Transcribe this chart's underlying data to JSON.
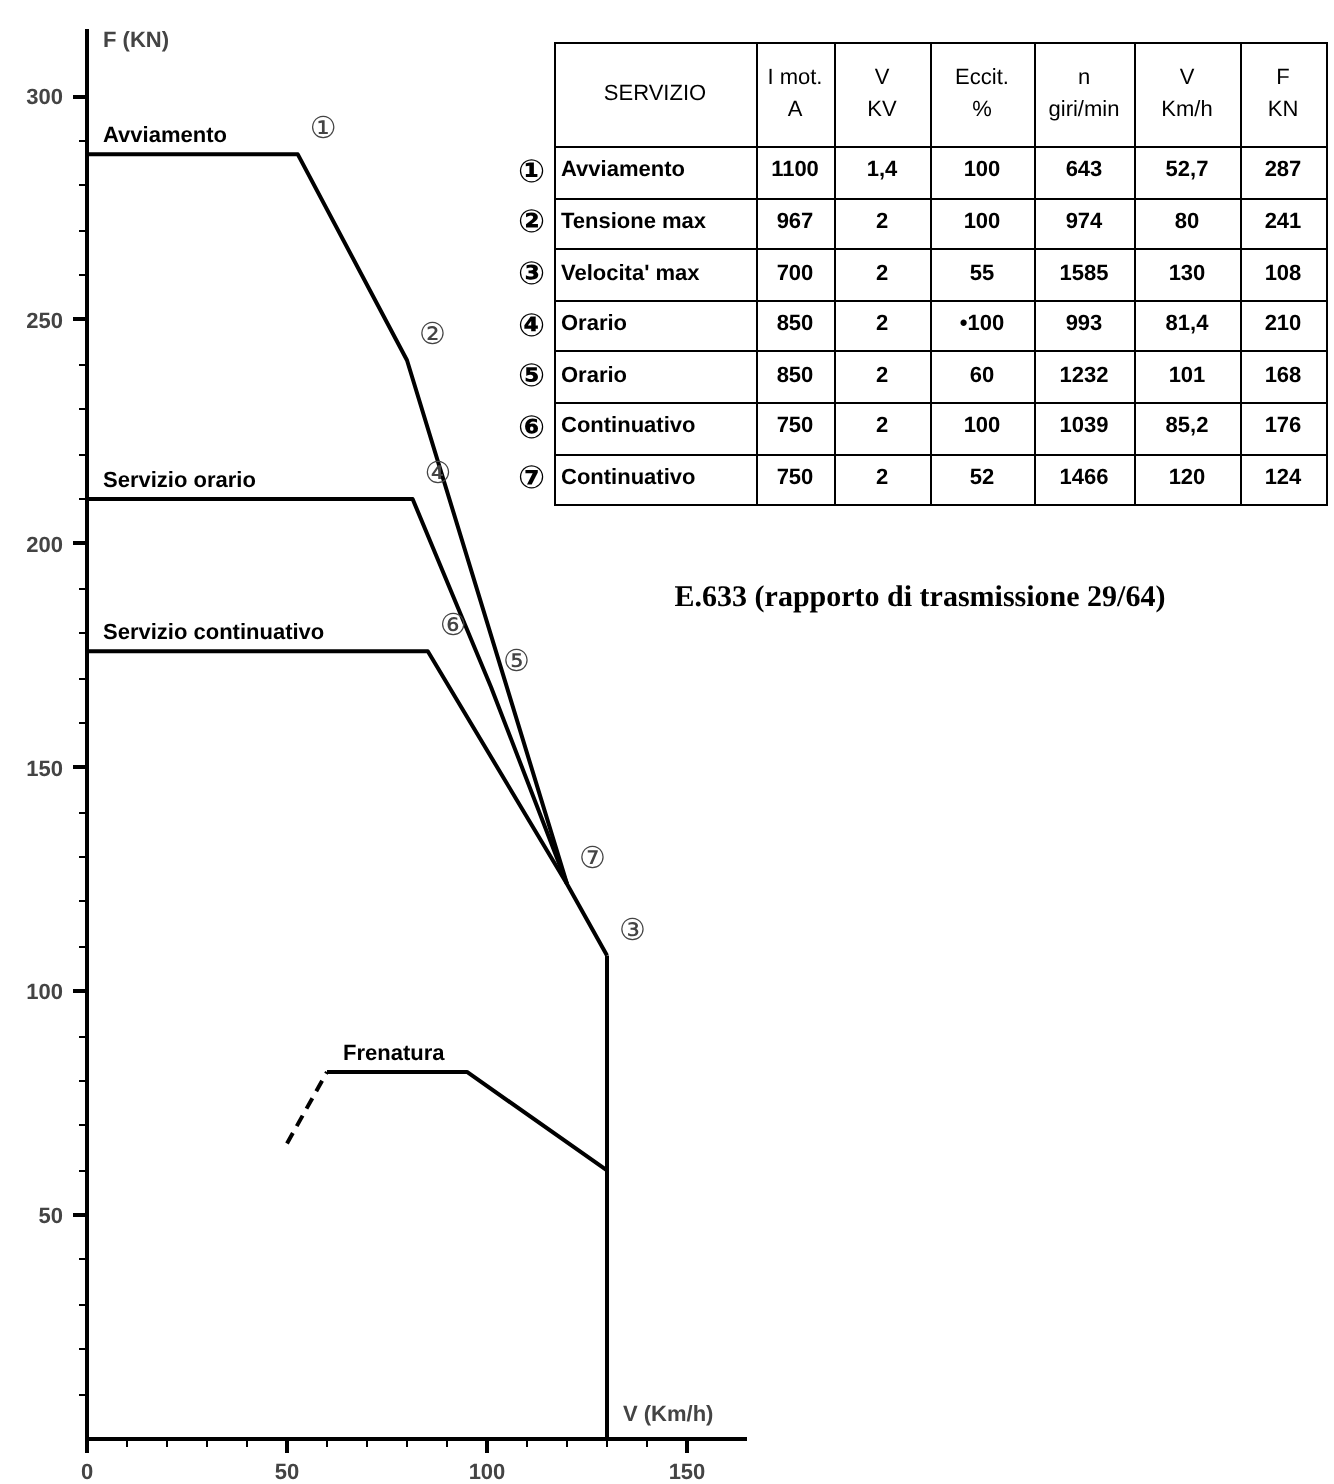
{
  "chart_data": [
    {
      "type": "line",
      "xlabel": "V (Km/h)",
      "ylabel": "F (KN)",
      "xlim": [
        0,
        165
      ],
      "ylim": [
        0,
        315
      ],
      "xticks": [
        0,
        {
          "value": 10,
          "label": null
        },
        {
          "value": 20,
          "label": null
        },
        {
          "value": 30,
          "label": null
        },
        {
          "value": 40,
          "label": null
        },
        50,
        {
          "value": 60,
          "label": null
        },
        {
          "value": 70,
          "label": null
        },
        {
          "value": 80,
          "label": null
        },
        {
          "value": 90,
          "label": null
        },
        100,
        {
          "value": 110,
          "label": null
        },
        {
          "value": 120,
          "label": null
        },
        {
          "value": 130,
          "label": null
        },
        {
          "value": 140,
          "label": null
        },
        150
      ],
      "yticks": [
        {
          "value": 10,
          "label": null
        },
        {
          "value": 20,
          "label": null
        },
        {
          "value": 30,
          "label": null
        },
        {
          "value": 40,
          "label": null
        },
        50,
        {
          "value": 60,
          "label": null
        },
        {
          "value": 70,
          "label": null
        },
        {
          "value": 80,
          "label": null
        },
        {
          "value": 90,
          "label": null
        },
        100,
        {
          "value": 110,
          "label": null
        },
        {
          "value": 120,
          "label": null
        },
        {
          "value": 130,
          "label": null
        },
        {
          "value": 140,
          "label": null
        },
        150,
        {
          "value": 160,
          "label": null
        },
        {
          "value": 170,
          "label": null
        },
        {
          "value": 180,
          "label": null
        },
        {
          "value": 190,
          "label": null
        },
        200,
        {
          "value": 210,
          "label": null
        },
        {
          "value": 220,
          "label": null
        },
        {
          "value": 230,
          "label": null
        },
        {
          "value": 240,
          "label": null
        },
        250,
        {
          "value": 260,
          "label": null
        },
        {
          "value": 270,
          "label": null
        },
        {
          "value": 280,
          "label": null
        },
        {
          "value": 290,
          "label": null
        },
        300
      ],
      "grid": false,
      "marker": "none",
      "series": [
        {
          "name": "Avviamento",
          "color": "#000000",
          "x": [
            0,
            52.7,
            80,
            120,
            130
          ],
          "values": [
            287,
            287,
            241,
            124,
            108
          ]
        },
        {
          "name": "Servizio orario",
          "color": "#000000",
          "x": [
            0,
            81.4,
            101,
            120
          ],
          "values": [
            210,
            210,
            168,
            124
          ]
        },
        {
          "name": "Servizio continuativo",
          "color": "#000000",
          "x": [
            0,
            85.2,
            120
          ],
          "values": [
            176,
            176,
            124
          ]
        },
        {
          "color": "#000000",
          "x": [
            130,
            130
          ],
          "values": [
            108,
            0
          ]
        },
        {
          "name": "Frenatura",
          "color": "#000000",
          "x": [
            60,
            95,
            130
          ],
          "values": [
            82,
            82,
            60
          ]
        },
        {
          "color": "#000000",
          "x": [
            50,
            60
          ],
          "values": [
            66,
            82
          ],
          "line_style": "dashed"
        }
      ],
      "annotations": [
        {
          "text": "①",
          "x": 52.7,
          "y": 287
        },
        {
          "text": "②",
          "x": 80,
          "y": 241
        },
        {
          "text": "③",
          "x": 130,
          "y": 108
        },
        {
          "text": "④",
          "x": 81.4,
          "y": 210
        },
        {
          "text": "⑤",
          "x": 101,
          "y": 168
        },
        {
          "text": "⑥",
          "x": 85.2,
          "y": 176
        },
        {
          "text": "⑦",
          "x": 120,
          "y": 124
        }
      ]
    },
    {
      "type": "other",
      "categories": [
        "SERVIZIO",
        "I mot.\nA",
        "V\nKV",
        "Eccit.\n%",
        "n\ngiri/min",
        "V\nKm/h",
        "F\nKN"
      ],
      "y_categories": [
        "①",
        "②",
        "③",
        "④",
        "⑤",
        "⑥",
        "⑦"
      ],
      "cell_labels": [
        [
          "Avviamento",
          "1100",
          "1,4",
          "100",
          "643",
          "52,7",
          "287"
        ],
        [
          "Tensione max",
          "967",
          "2",
          "100",
          "974",
          "80",
          "241"
        ],
        [
          "Velocita' max",
          "700",
          "2",
          "55",
          "1585",
          "130",
          "108"
        ],
        [
          "Orario",
          "850",
          "2",
          "•100",
          "993",
          "81,4",
          "210"
        ],
        [
          "Orario",
          "850",
          "2",
          "60",
          "1232",
          "101",
          "168"
        ],
        [
          "Continuativo",
          "750",
          "2",
          "100",
          "1039",
          "85,2",
          "176"
        ],
        [
          "Continuativo",
          "750",
          "2",
          "52",
          "1466",
          "120",
          "124"
        ]
      ],
      "annotations": [
        "E.633 (rapporto di trasmissione 29/64)"
      ]
    }
  ]
}
